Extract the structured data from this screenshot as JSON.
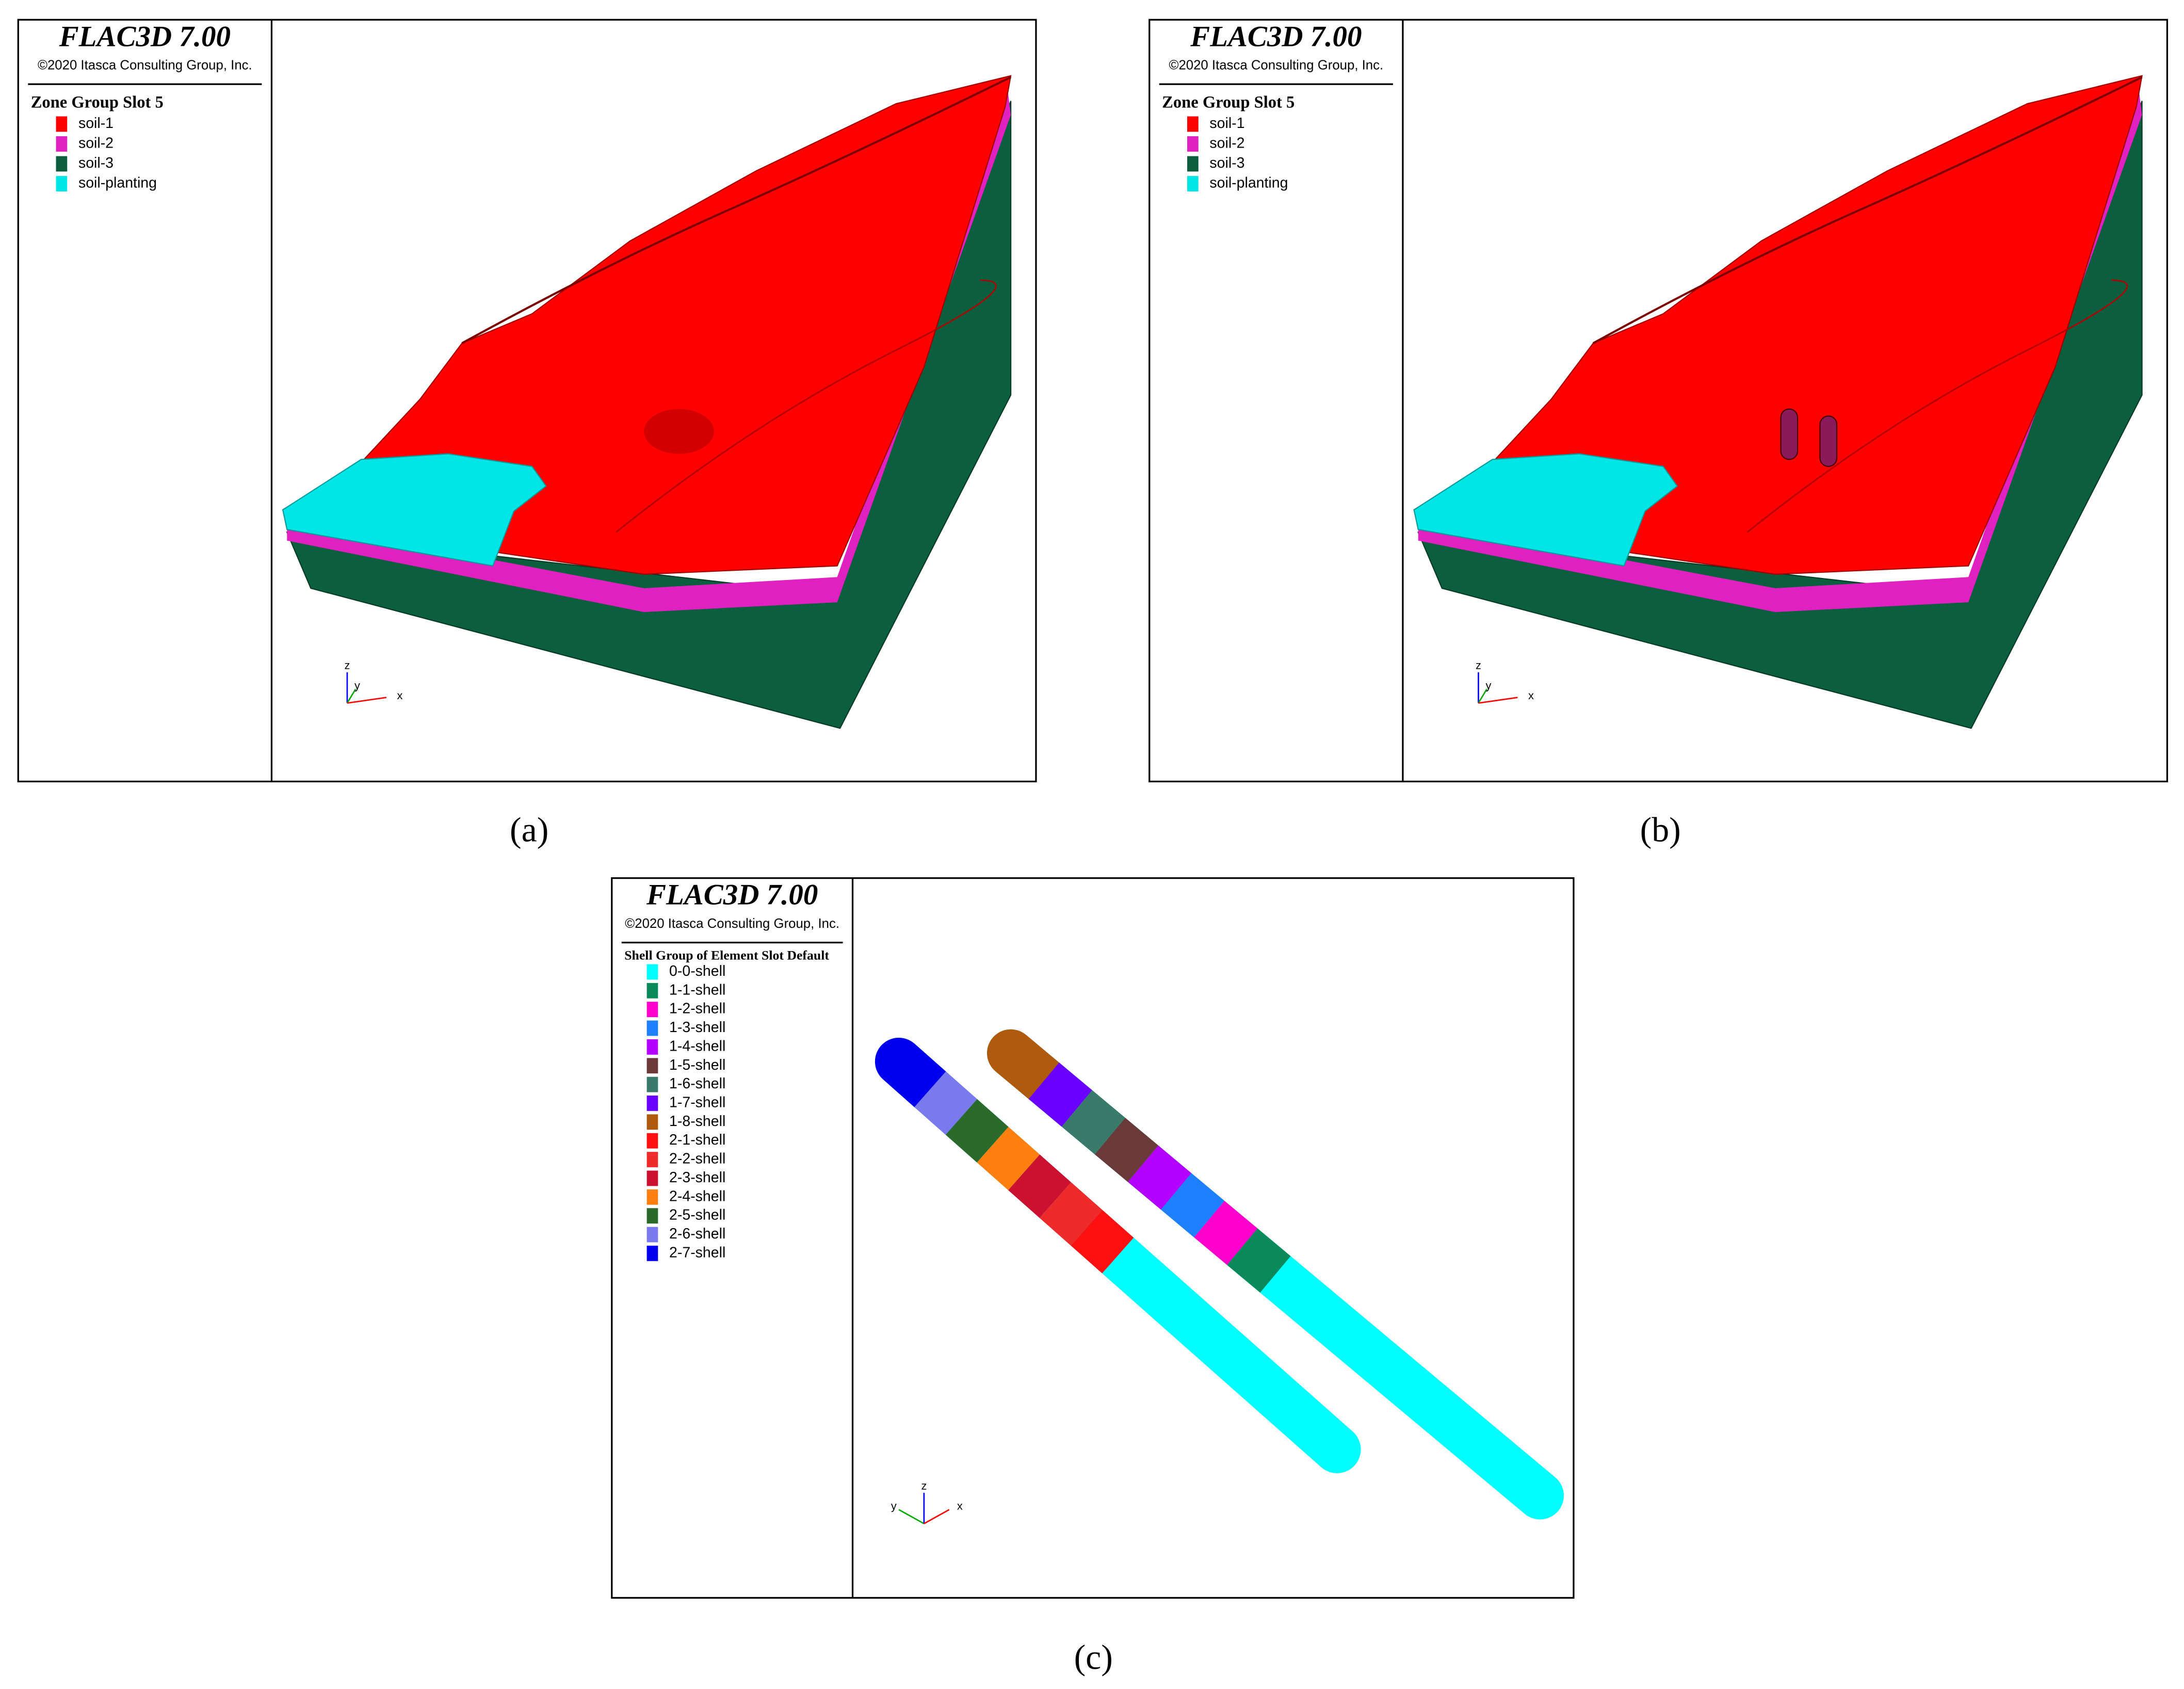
{
  "panels": [
    {
      "label": "(a)",
      "title": "FLAC3D 7.00",
      "copyright": "©2020 Itasca Consulting Group, Inc.",
      "legend_title": "Zone Group Slot 5",
      "legend": [
        {
          "label": "soil-1",
          "color": "#ff0000"
        },
        {
          "label": "soil-2",
          "color": "#e020c0"
        },
        {
          "label": "soil-3",
          "color": "#0b5e3e"
        },
        {
          "label": "soil-planting",
          "color": "#00e5e5"
        }
      ],
      "axis_labels": [
        "z",
        "y",
        "x"
      ]
    },
    {
      "label": "(b)",
      "title": "FLAC3D 7.00",
      "copyright": "©2020 Itasca Consulting Group, Inc.",
      "legend_title": "Zone Group Slot 5",
      "legend": [
        {
          "label": "soil-1",
          "color": "#ff0000"
        },
        {
          "label": "soil-2",
          "color": "#e020c0"
        },
        {
          "label": "soil-3",
          "color": "#0b5e3e"
        },
        {
          "label": "soil-planting",
          "color": "#00e5e5"
        }
      ],
      "axis_labels": [
        "z",
        "y",
        "x"
      ]
    },
    {
      "label": "(c)",
      "title": "FLAC3D 7.00",
      "copyright": "©2020 Itasca Consulting Group, Inc.",
      "legend_title": "Shell Group of Element Slot Default",
      "legend": [
        {
          "label": "0-0-shell",
          "color": "#00ffff"
        },
        {
          "label": "1-1-shell",
          "color": "#0a8a5a"
        },
        {
          "label": "1-2-shell",
          "color": "#ff00cc"
        },
        {
          "label": "1-3-shell",
          "color": "#1e7fff"
        },
        {
          "label": "1-4-shell",
          "color": "#b400ff"
        },
        {
          "label": "1-5-shell",
          "color": "#6a3a3a"
        },
        {
          "label": "1-6-shell",
          "color": "#3a7a6a"
        },
        {
          "label": "1-7-shell",
          "color": "#6a00ff"
        },
        {
          "label": "1-8-shell",
          "color": "#b05a10"
        },
        {
          "label": "2-1-shell",
          "color": "#ff1010"
        },
        {
          "label": "2-2-shell",
          "color": "#ee2a2a"
        },
        {
          "label": "2-3-shell",
          "color": "#cc1030"
        },
        {
          "label": "2-4-shell",
          "color": "#ff8010"
        },
        {
          "label": "2-5-shell",
          "color": "#2a6a2a"
        },
        {
          "label": "2-6-shell",
          "color": "#7a7aee"
        },
        {
          "label": "2-7-shell",
          "color": "#0000ee"
        }
      ],
      "axis_labels": [
        "y",
        "z",
        "x"
      ]
    }
  ]
}
